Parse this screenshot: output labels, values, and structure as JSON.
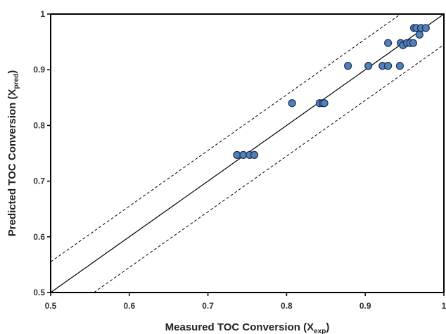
{
  "chart_data": {
    "type": "scatter",
    "title": "",
    "xlabel": {
      "main": "Measured TOC Conversion (X",
      "sub": "exp",
      "close": ")"
    },
    "ylabel": {
      "main": "Predicted TOC Conversion (X",
      "sub": "pred",
      "close": ")"
    },
    "xlim": [
      0.5,
      1.0
    ],
    "ylim": [
      0.5,
      1.0
    ],
    "x_ticks": [
      0.5,
      0.6,
      0.7,
      0.8,
      0.9,
      1.0
    ],
    "y_ticks": [
      0.5,
      0.6,
      0.7,
      0.8,
      0.9,
      1.0
    ],
    "x_tick_labels": [
      "0.5",
      "0.6",
      "0.7",
      "0.8",
      "0.9",
      "1"
    ],
    "y_tick_labels": [
      "0.5",
      "0.6",
      "0.7",
      "0.8",
      "0.9",
      "1"
    ],
    "grid": false,
    "legend": "none",
    "series": [
      {
        "marker_color": "#4f81bd",
        "marker_edge": "#1f2f4f",
        "points": [
          {
            "x": 0.737,
            "y": 0.747
          },
          {
            "x": 0.745,
            "y": 0.747
          },
          {
            "x": 0.753,
            "y": 0.747
          },
          {
            "x": 0.759,
            "y": 0.747
          },
          {
            "x": 0.807,
            "y": 0.84
          },
          {
            "x": 0.842,
            "y": 0.84
          },
          {
            "x": 0.846,
            "y": 0.84
          },
          {
            "x": 0.848,
            "y": 0.84
          },
          {
            "x": 0.878,
            "y": 0.907
          },
          {
            "x": 0.904,
            "y": 0.907
          },
          {
            "x": 0.922,
            "y": 0.907
          },
          {
            "x": 0.929,
            "y": 0.907
          },
          {
            "x": 0.944,
            "y": 0.907
          },
          {
            "x": 0.929,
            "y": 0.948
          },
          {
            "x": 0.945,
            "y": 0.948
          },
          {
            "x": 0.948,
            "y": 0.944
          },
          {
            "x": 0.953,
            "y": 0.948
          },
          {
            "x": 0.957,
            "y": 0.948
          },
          {
            "x": 0.961,
            "y": 0.948
          },
          {
            "x": 0.962,
            "y": 0.975
          },
          {
            "x": 0.965,
            "y": 0.975
          },
          {
            "x": 0.969,
            "y": 0.963
          },
          {
            "x": 0.971,
            "y": 0.975
          },
          {
            "x": 0.977,
            "y": 0.975
          }
        ]
      }
    ],
    "reference_lines": [
      {
        "kind": "identity",
        "style": "solid",
        "from": [
          0.5,
          0.5
        ],
        "to": [
          1.0,
          1.0
        ]
      },
      {
        "kind": "upper-bound",
        "style": "dashed",
        "from": [
          0.5,
          0.555
        ],
        "to": [
          1.0,
          1.055
        ]
      },
      {
        "kind": "lower-bound",
        "style": "dashed",
        "from": [
          0.555,
          0.5
        ],
        "to": [
          1.0,
          0.945
        ]
      }
    ]
  }
}
